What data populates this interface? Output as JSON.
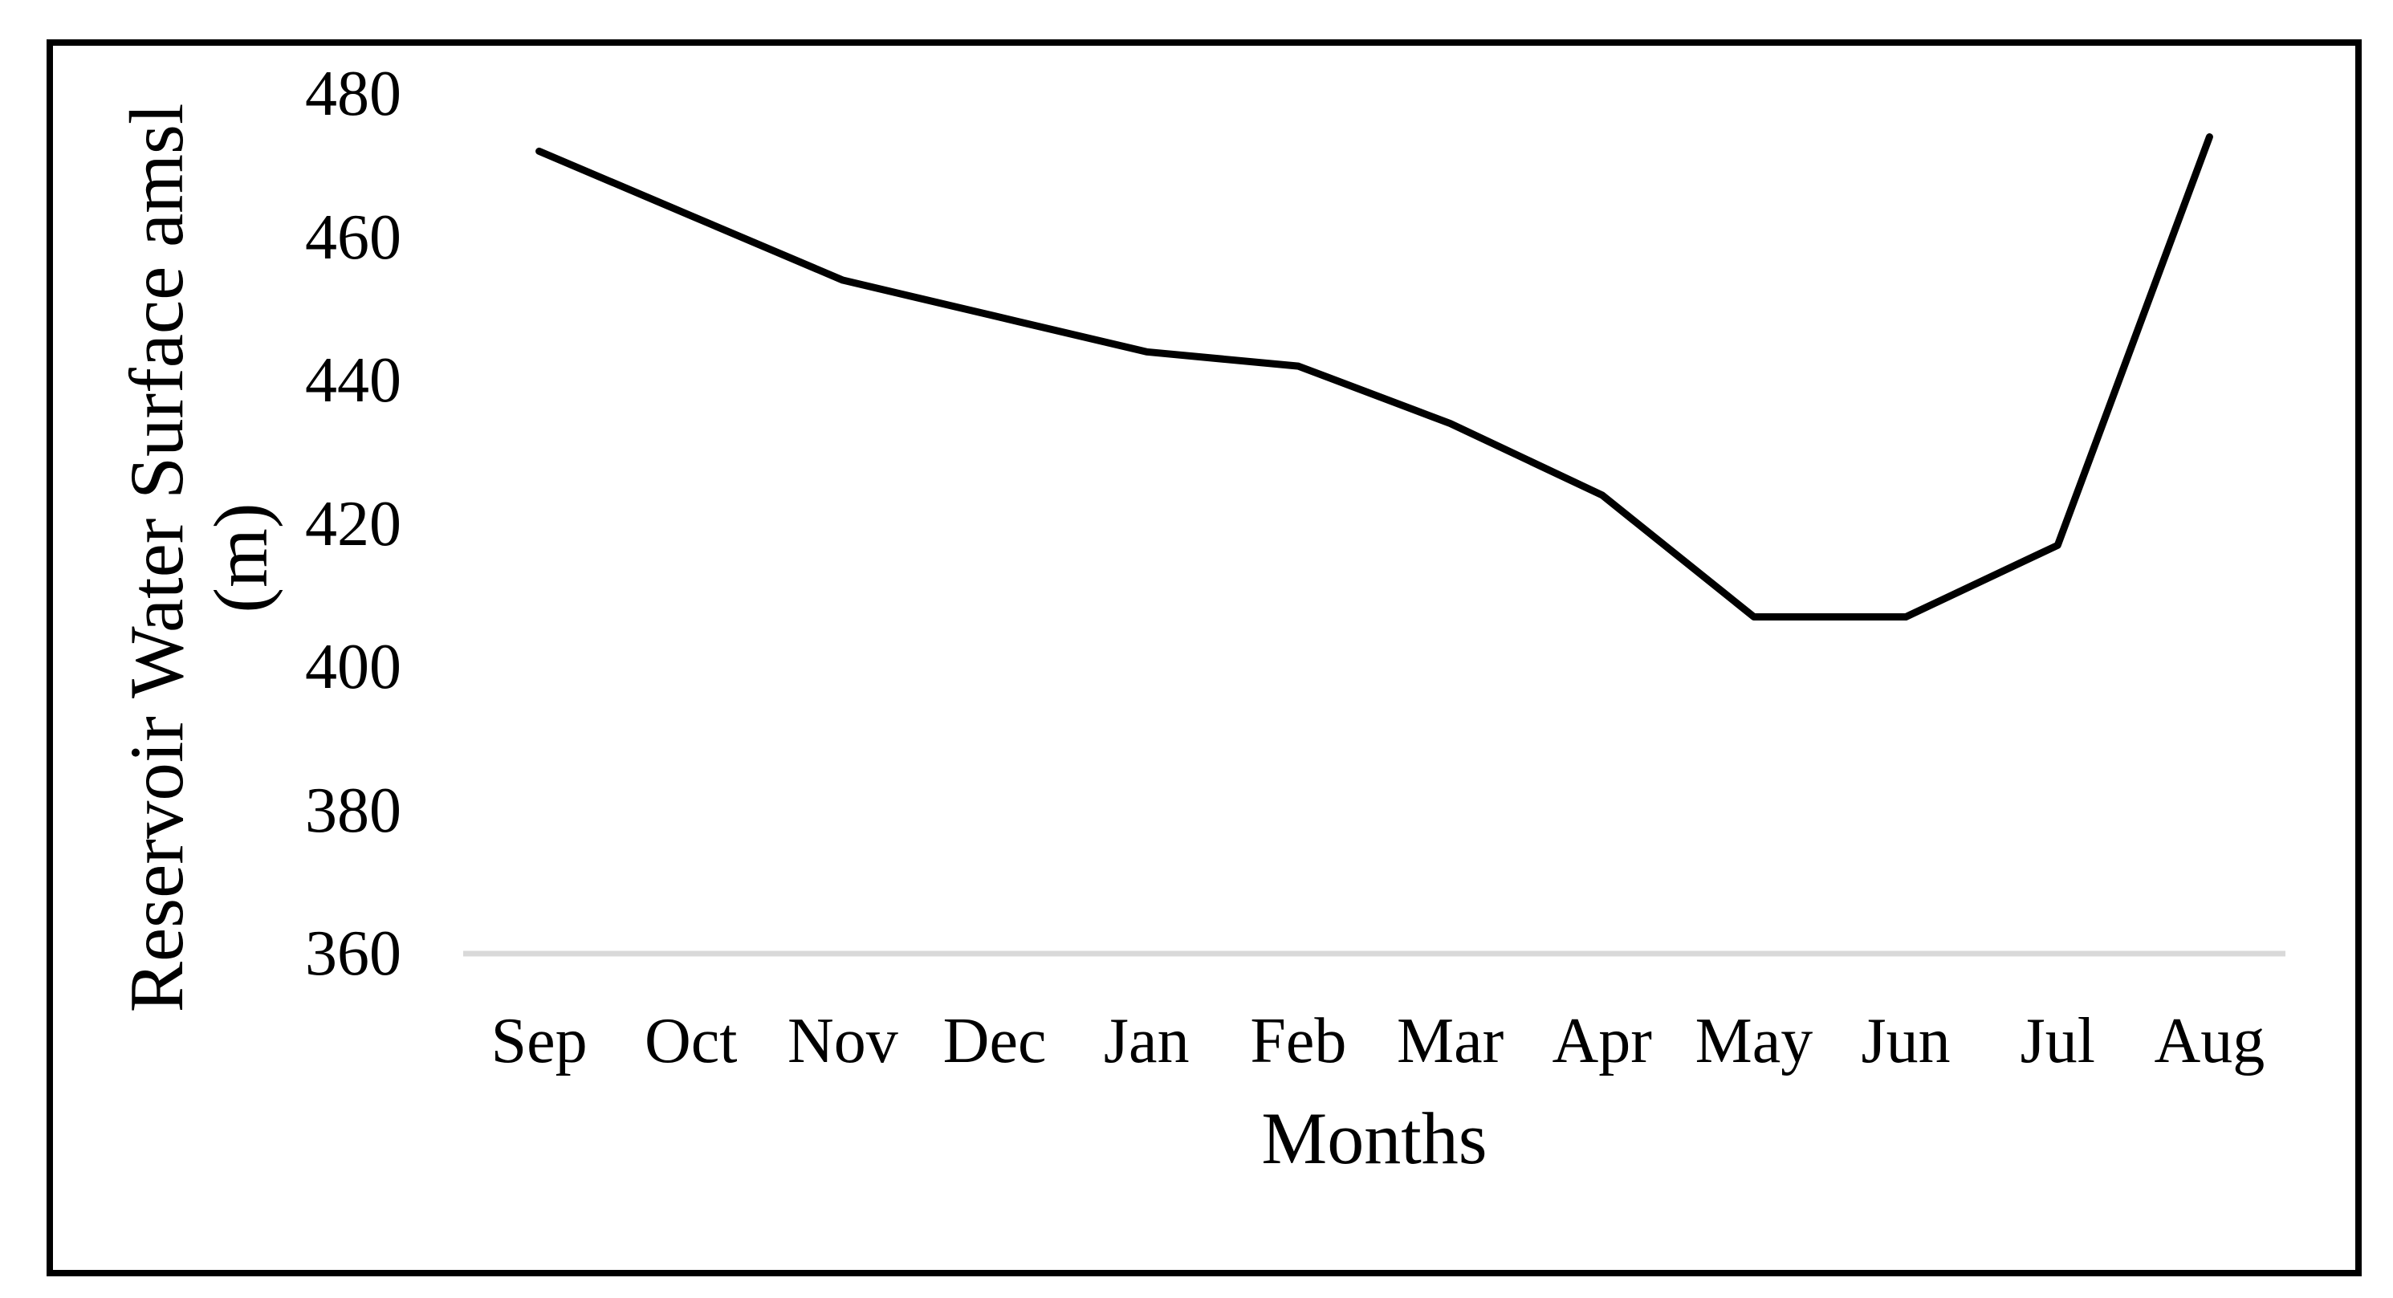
{
  "figure": {
    "kind": "line chart figure",
    "background_color": "#ffffff",
    "border_color": "#000000"
  },
  "chart_data": {
    "type": "line",
    "title": "",
    "categories": [
      "Sep",
      "Oct",
      "Nov",
      "Dec",
      "Jan",
      "Feb",
      "Mar",
      "Apr",
      "May",
      "Jun",
      "Jul",
      "Aug"
    ],
    "series": [
      {
        "name": "Reservoir Water Surface",
        "values": [
          472,
          463,
          454,
          449,
          444,
          442,
          434,
          424,
          407,
          407,
          417,
          474
        ]
      }
    ],
    "xlabel": "Months",
    "ylabel_line1": "Reservoir Water Surface  amsl",
    "ylabel_line2": "(m)",
    "ylim": [
      360,
      480
    ],
    "yticks": [
      480,
      460,
      440,
      420,
      400,
      380,
      360
    ],
    "grid": "off",
    "legend": "none",
    "line_color": "#000000",
    "baseline_color": "#d9d9d9"
  }
}
